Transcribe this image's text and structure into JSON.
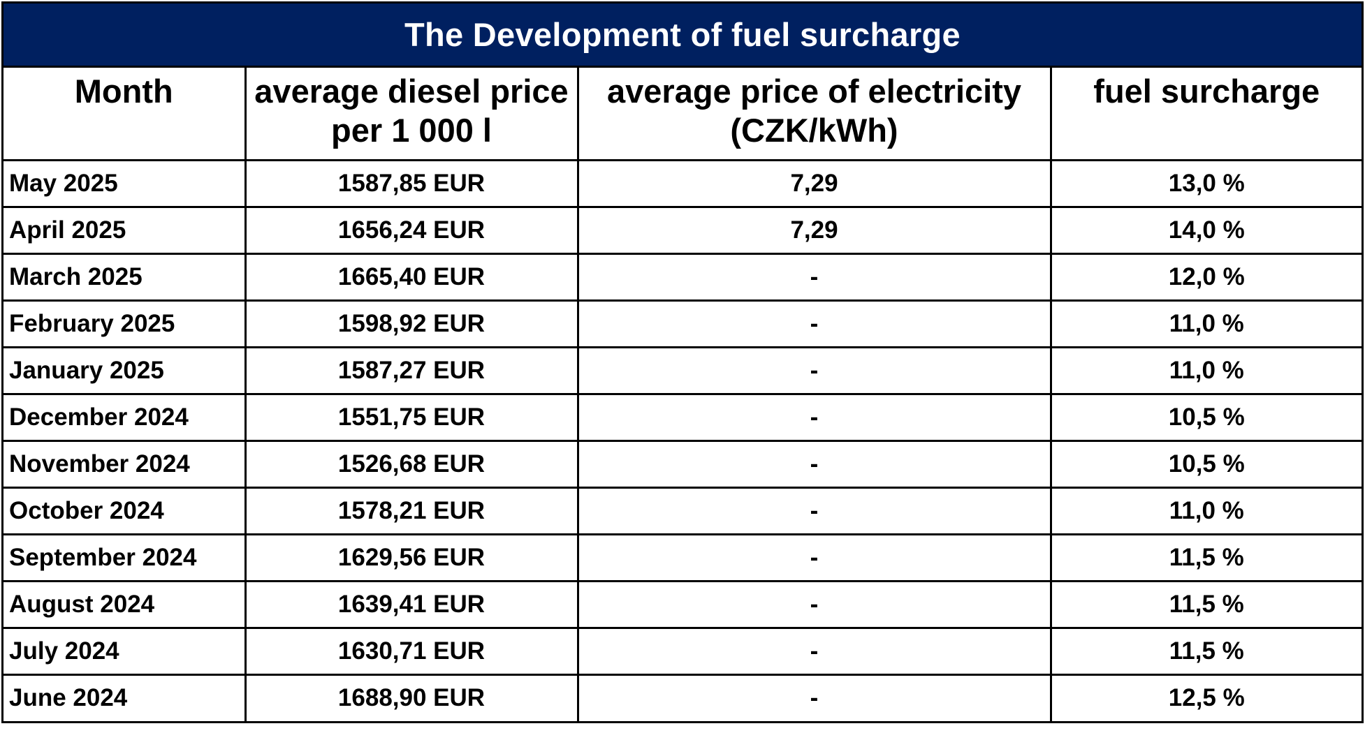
{
  "title": "The Development of fuel surcharge",
  "headers": {
    "month": "Month",
    "diesel_line1": "average diesel price",
    "diesel_line2": "per 1 000 l",
    "electricity_line1": "average price of electricity",
    "electricity_line2": "(CZK/kWh)",
    "surcharge": "fuel surcharge"
  },
  "rows": [
    {
      "month": "May 2025",
      "diesel": "1587,85 EUR",
      "electricity": "7,29",
      "surcharge": "13,0 %"
    },
    {
      "month": "April 2025",
      "diesel": "1656,24 EUR",
      "electricity": "7,29",
      "surcharge": "14,0 %"
    },
    {
      "month": "March 2025",
      "diesel": "1665,40 EUR",
      "electricity": "-",
      "surcharge": "12,0 %"
    },
    {
      "month": "February 2025",
      "diesel": "1598,92 EUR",
      "electricity": "-",
      "surcharge": "11,0 %"
    },
    {
      "month": "January 2025",
      "diesel": "1587,27 EUR",
      "electricity": "-",
      "surcharge": "11,0 %"
    },
    {
      "month": "December 2024",
      "diesel": "1551,75 EUR",
      "electricity": "-",
      "surcharge": "10,5 %"
    },
    {
      "month": "November 2024",
      "diesel": "1526,68 EUR",
      "electricity": "-",
      "surcharge": "10,5 %"
    },
    {
      "month": "October 2024",
      "diesel": "1578,21 EUR",
      "electricity": "-",
      "surcharge": "11,0 %"
    },
    {
      "month": "September 2024",
      "diesel": "1629,56 EUR",
      "electricity": "-",
      "surcharge": "11,5 %"
    },
    {
      "month": "August 2024",
      "diesel": "1639,41 EUR",
      "electricity": "-",
      "surcharge": "11,5 %"
    },
    {
      "month": "July 2024",
      "diesel": "1630,71 EUR",
      "electricity": "-",
      "surcharge": "11,5 %"
    },
    {
      "month": "June 2024",
      "diesel": "1688,90 EUR",
      "electricity": "-",
      "surcharge": "12,5 %"
    }
  ],
  "colors": {
    "title_background": "#002060",
    "title_text": "#ffffff",
    "grid": "#000000"
  }
}
